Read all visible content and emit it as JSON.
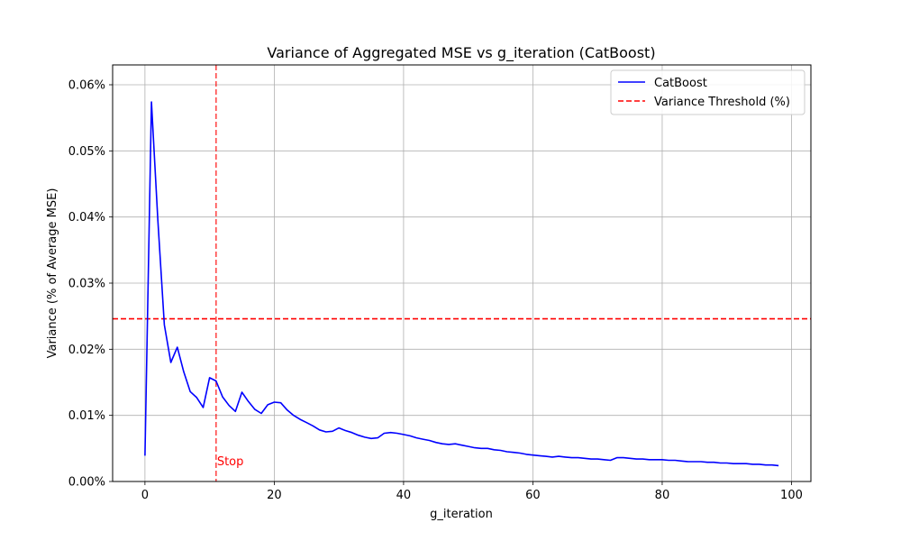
{
  "chart_data": {
    "type": "line",
    "title": "Variance of Aggregated MSE vs g_iteration (CatBoost)",
    "xlabel": "g_iteration",
    "ylabel": "Variance (% of Average MSE)",
    "xlim": [
      -5,
      103
    ],
    "ylim": [
      0,
      0.063
    ],
    "x_ticks": [
      0,
      20,
      40,
      60,
      80,
      100
    ],
    "y_ticks": [
      0,
      0.01,
      0.02,
      0.03,
      0.04,
      0.05,
      0.06
    ],
    "y_tick_labels": [
      "0.00%",
      "0.01%",
      "0.02%",
      "0.03%",
      "0.04%",
      "0.05%",
      "0.06%"
    ],
    "grid": true,
    "legend_position": "top-right",
    "series": [
      {
        "name": "CatBoost",
        "color": "#0000ff",
        "x": [
          0,
          1,
          2,
          3,
          4,
          5,
          6,
          7,
          8,
          9,
          10,
          11,
          12,
          13,
          14,
          15,
          16,
          17,
          18,
          19,
          20,
          21,
          22,
          23,
          24,
          25,
          26,
          27,
          28,
          29,
          30,
          31,
          32,
          33,
          34,
          35,
          36,
          37,
          38,
          39,
          40,
          41,
          42,
          43,
          44,
          45,
          46,
          47,
          48,
          49,
          50,
          51,
          52,
          53,
          54,
          55,
          56,
          57,
          58,
          59,
          60,
          61,
          62,
          63,
          64,
          65,
          66,
          67,
          68,
          69,
          70,
          71,
          72,
          73,
          74,
          75,
          76,
          77,
          78,
          79,
          80,
          81,
          82,
          83,
          84,
          85,
          86,
          87,
          88,
          89,
          90,
          91,
          92,
          93,
          94,
          95,
          96,
          97,
          98
        ],
        "y": [
          0.0039,
          0.0574,
          0.0395,
          0.0237,
          0.018,
          0.0203,
          0.0166,
          0.0136,
          0.0127,
          0.0112,
          0.0157,
          0.0152,
          0.0128,
          0.0115,
          0.0106,
          0.0135,
          0.0121,
          0.0109,
          0.0103,
          0.0116,
          0.012,
          0.0119,
          0.0108,
          0.01,
          0.0094,
          0.0089,
          0.0084,
          0.0078,
          0.0075,
          0.0076,
          0.0081,
          0.0077,
          0.0074,
          0.007,
          0.0067,
          0.0065,
          0.0066,
          0.0073,
          0.0074,
          0.0073,
          0.0071,
          0.0069,
          0.0066,
          0.0064,
          0.0062,
          0.0059,
          0.0057,
          0.0056,
          0.0057,
          0.0055,
          0.0053,
          0.0051,
          0.005,
          0.005,
          0.0048,
          0.0047,
          0.0045,
          0.0044,
          0.0043,
          0.0041,
          0.004,
          0.0039,
          0.0038,
          0.0037,
          0.0038,
          0.0037,
          0.0036,
          0.0036,
          0.0035,
          0.0034,
          0.0034,
          0.0033,
          0.0032,
          0.0036,
          0.0036,
          0.0035,
          0.0034,
          0.0034,
          0.0033,
          0.0033,
          0.0033,
          0.0032,
          0.0032,
          0.0031,
          0.003,
          0.003,
          0.003,
          0.0029,
          0.0029,
          0.0028,
          0.0028,
          0.0027,
          0.0027,
          0.0027,
          0.0026,
          0.0026,
          0.0025,
          0.0025,
          0.0024
        ]
      }
    ],
    "threshold": {
      "name": "Variance Threshold (%)",
      "y": 0.0246,
      "color": "#ff0000",
      "style": "dashed"
    },
    "stop_line": {
      "x": 11,
      "color": "#ff0000",
      "style": "dashed",
      "label": "Stop"
    }
  }
}
